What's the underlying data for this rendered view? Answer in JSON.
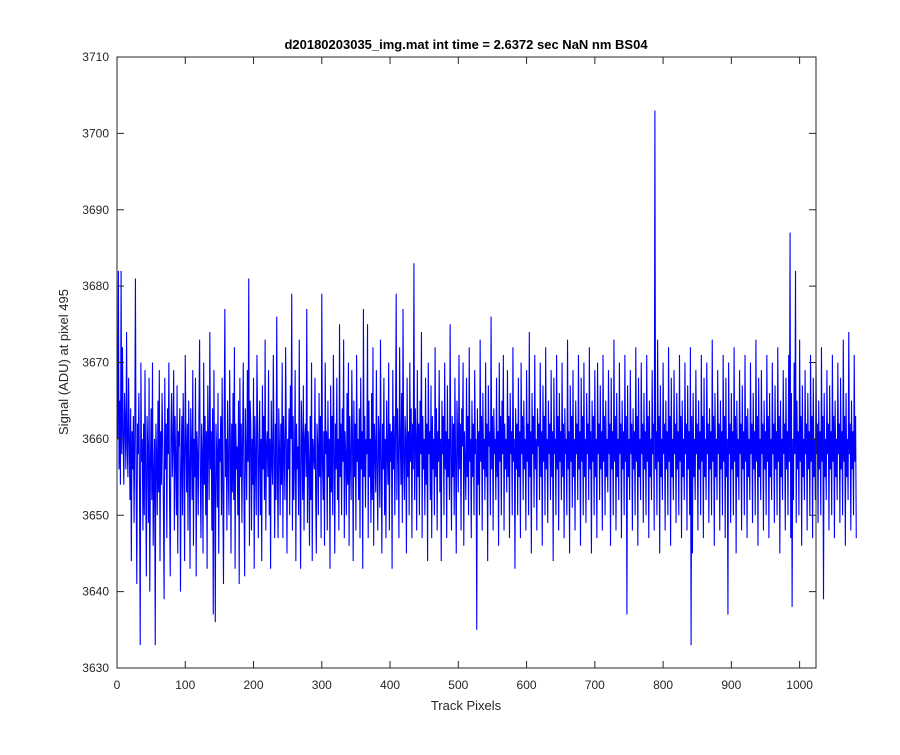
{
  "chart_data": {
    "type": "line",
    "title": "d20180203035_img.mat int time = 2.6372 sec  NaN nm BS04",
    "xlabel": "Track Pixels",
    "ylabel": "Signal (ADU) at pixel 495",
    "xlim": [
      0,
      1024
    ],
    "ylim": [
      3630,
      3710
    ],
    "xticks": [
      0,
      100,
      200,
      300,
      400,
      500,
      600,
      700,
      800,
      900,
      1000
    ],
    "yticks": [
      3630,
      3640,
      3650,
      3660,
      3670,
      3680,
      3690,
      3700,
      3710
    ],
    "grid": false,
    "legend": "none",
    "line_color": "#0000ff",
    "series": [
      {
        "x_start": 1,
        "x_step": 1,
        "note_sampling": "approximate noisy trace, one value per track pixel 1..1024",
        "values": [
          3660,
          3682,
          3656,
          3665,
          3654,
          3682,
          3658,
          3672,
          3660,
          3654,
          3666,
          3662,
          3656,
          3674,
          3659,
          3655,
          3668,
          3660,
          3652,
          3664,
          3644,
          3661,
          3656,
          3663,
          3649,
          3660,
          3681,
          3655,
          3641,
          3662,
          3658,
          3666,
          3653,
          3633,
          3670,
          3657,
          3660,
          3648,
          3662,
          3650,
          3669,
          3655,
          3642,
          3663,
          3659,
          3649,
          3668,
          3640,
          3657,
          3664,
          3652,
          3670,
          3646,
          3655,
          3660,
          3633,
          3662,
          3658,
          3650,
          3665,
          3653,
          3669,
          3644,
          3661,
          3654,
          3666,
          3660,
          3651,
          3639,
          3668,
          3656,
          3662,
          3647,
          3664,
          3658,
          3670,
          3652,
          3642,
          3661,
          3666,
          3655,
          3659,
          3669,
          3648,
          3663,
          3657,
          3650,
          3667,
          3645,
          3661,
          3659,
          3664,
          3640,
          3656,
          3663,
          3650,
          3666,
          3658,
          3644,
          3671,
          3660,
          3653,
          3662,
          3648,
          3665,
          3657,
          3643,
          3664,
          3659,
          3652,
          3669,
          3646,
          3660,
          3655,
          3668,
          3642,
          3661,
          3658,
          3650,
          3663,
          3673,
          3655,
          3647,
          3662,
          3658,
          3645,
          3670,
          3654,
          3663,
          3650,
          3661,
          3643,
          3667,
          3659,
          3652,
          3674,
          3656,
          3661,
          3648,
          3664,
          3637,
          3669,
          3655,
          3636,
          3662,
          3658,
          3651,
          3666,
          3645,
          3660,
          3657,
          3663,
          3650,
          3668,
          3653,
          3641,
          3662,
          3677,
          3655,
          3660,
          3648,
          3665,
          3656,
          3650,
          3669,
          3660,
          3645,
          3662,
          3653,
          3666,
          3652,
          3672,
          3643,
          3662,
          3656,
          3659,
          3650,
          3665,
          3641,
          3668,
          3655,
          3662,
          3649,
          3660,
          3670,
          3653,
          3642,
          3664,
          3658,
          3652,
          3669,
          3657,
          3681,
          3646,
          3665,
          3662,
          3648,
          3660,
          3654,
          3668,
          3643,
          3663,
          3657,
          3650,
          3671,
          3662,
          3647,
          3658,
          3665,
          3650,
          3660,
          3644,
          3667,
          3656,
          3663,
          3652,
          3673,
          3648,
          3659,
          3661,
          3655,
          3669,
          3650,
          3660,
          3643,
          3665,
          3657,
          3654,
          3671,
          3658,
          3647,
          3662,
          3652,
          3676,
          3655,
          3647,
          3664,
          3659,
          3650,
          3662,
          3654,
          3670,
          3647,
          3663,
          3658,
          3652,
          3672,
          3661,
          3645,
          3660,
          3656,
          3664,
          3650,
          3667,
          3660,
          3679,
          3648,
          3663,
          3652,
          3657,
          3669,
          3644,
          3662,
          3656,
          3659,
          3650,
          3673,
          3654,
          3643,
          3665,
          3660,
          3652,
          3667,
          3648,
          3660,
          3662,
          3655,
          3677,
          3649,
          3661,
          3657,
          3646,
          3663,
          3652,
          3670,
          3644,
          3660,
          3658,
          3656,
          3668,
          3653,
          3645,
          3662,
          3659,
          3650,
          3666,
          3655,
          3663,
          3647,
          3679,
          3657,
          3652,
          3661,
          3646,
          3670,
          3658,
          3661,
          3648,
          3665,
          3655,
          3660,
          3643,
          3667,
          3653,
          3663,
          3650,
          3671,
          3659,
          3645,
          3662,
          3656,
          3668,
          3652,
          3660,
          3648,
          3675,
          3655,
          3662,
          3650,
          3664,
          3657,
          3673,
          3647,
          3661,
          3658,
          3650,
          3666,
          3654,
          3670,
          3646,
          3663,
          3657,
          3652,
          3669,
          3660,
          3644,
          3665,
          3655,
          3662,
          3648,
          3671,
          3657,
          3660,
          3652,
          3664,
          3647,
          3668,
          3656,
          3661,
          3643,
          3677,
          3655,
          3663,
          3651,
          3660,
          3658,
          3675,
          3647,
          3665,
          3655,
          3660,
          3649,
          3666,
          3652,
          3672,
          3646,
          3662,
          3659,
          3653,
          3669,
          3656,
          3648,
          3663,
          3660,
          3651,
          3673,
          3657,
          3645,
          3662,
          3656,
          3668,
          3650,
          3660,
          3647,
          3665,
          3658,
          3654,
          3670,
          3648,
          3662,
          3657,
          3661,
          3643,
          3669,
          3656,
          3663,
          3650,
          3661,
          3679,
          3652,
          3664,
          3658,
          3647,
          3672,
          3660,
          3654,
          3666,
          3649,
          3677,
          3657,
          3652,
          3663,
          3660,
          3645,
          3668,
          3655,
          3661,
          3650,
          3670,
          3657,
          3664,
          3647,
          3662,
          3656,
          3683,
          3652,
          3664,
          3660,
          3648,
          3669,
          3655,
          3662,
          3650,
          3665,
          3658,
          3674,
          3647,
          3663,
          3656,
          3660,
          3650,
          3668,
          3654,
          3662,
          3644,
          3670,
          3658,
          3661,
          3652,
          3667,
          3647,
          3663,
          3656,
          3660,
          3650,
          3672,
          3655,
          3664,
          3648,
          3661,
          3657,
          3669,
          3653,
          3660,
          3644,
          3665,
          3658,
          3663,
          3650,
          3670,
          3656,
          3661,
          3647,
          3667,
          3655,
          3660,
          3652,
          3675,
          3658,
          3648,
          3663,
          3655,
          3662,
          3650,
          3668,
          3657,
          3645,
          3665,
          3660,
          3653,
          3671,
          3656,
          3662,
          3648,
          3664,
          3659,
          3670,
          3646,
          3661,
          3657,
          3652,
          3668,
          3655,
          3663,
          3650,
          3672,
          3657,
          3660,
          3647,
          3665,
          3655,
          3662,
          3650,
          3669,
          3658,
          3660,
          3635,
          3664,
          3654,
          3661,
          3650,
          3673,
          3657,
          3663,
          3648,
          3666,
          3656,
          3660,
          3652,
          3670,
          3655,
          3662,
          3644,
          3667,
          3659,
          3661,
          3650,
          3676,
          3656,
          3663,
          3648,
          3664,
          3658,
          3660,
          3652,
          3668,
          3655,
          3661,
          3646,
          3670,
          3657,
          3663,
          3650,
          3665,
          3658,
          3671,
          3648,
          3662,
          3656,
          3660,
          3653,
          3669,
          3655,
          3663,
          3647,
          3666,
          3658,
          3661,
          3650,
          3672,
          3657,
          3660,
          3643,
          3664,
          3656,
          3662,
          3650,
          3668,
          3655,
          3661,
          3647,
          3670,
          3658,
          3663,
          3652,
          3665,
          3656,
          3660,
          3648,
          3669,
          3657,
          3662,
          3650,
          3674,
          3655,
          3661,
          3645,
          3666,
          3658,
          3663,
          3651,
          3671,
          3656,
          3660,
          3648,
          3664,
          3659,
          3662,
          3652,
          3670,
          3655,
          3661,
          3646,
          3667,
          3657,
          3663,
          3650,
          3672,
          3656,
          3660,
          3649,
          3665,
          3658,
          3662,
          3652,
          3669,
          3655,
          3661,
          3644,
          3668,
          3658,
          3660,
          3650,
          3671,
          3656,
          3663,
          3648,
          3666,
          3657,
          3661,
          3652,
          3670,
          3655,
          3662,
          3647,
          3664,
          3658,
          3660,
          3650,
          3673,
          3656,
          3661,
          3645,
          3667,
          3657,
          3663,
          3651,
          3669,
          3655,
          3660,
          3648,
          3665,
          3658,
          3662,
          3652,
          3671,
          3656,
          3661,
          3646,
          3668,
          3657,
          3663,
          3650,
          3670,
          3655,
          3660,
          3649,
          3666,
          3658,
          3662,
          3652,
          3672,
          3656,
          3661,
          3645,
          3665,
          3657,
          3663,
          3650,
          3669,
          3655,
          3660,
          3647,
          3670,
          3658,
          3662,
          3652,
          3667,
          3656,
          3661,
          3648,
          3671,
          3657,
          3663,
          3650,
          3665,
          3655,
          3660,
          3653,
          3669,
          3658,
          3662,
          3646,
          3668,
          3656,
          3661,
          3650,
          3673,
          3657,
          3663,
          3648,
          3666,
          3655,
          3660,
          3652,
          3670,
          3658,
          3662,
          3647,
          3665,
          3656,
          3661,
          3650,
          3671,
          3657,
          3663,
          3637,
          3667,
          3655,
          3660,
          3652,
          3669,
          3658,
          3662,
          3648,
          3664,
          3656,
          3661,
          3650,
          3672,
          3657,
          3663,
          3646,
          3668,
          3655,
          3660,
          3652,
          3670,
          3658,
          3662,
          3649,
          3666,
          3656,
          3661,
          3650,
          3671,
          3657,
          3663,
          3647,
          3665,
          3655,
          3660,
          3652,
          3669,
          3658,
          3662,
          3648,
          3703,
          3656,
          3661,
          3650,
          3673,
          3657,
          3663,
          3645,
          3667,
          3655,
          3660,
          3652,
          3670,
          3658,
          3662,
          3648,
          3665,
          3656,
          3661,
          3650,
          3672,
          3657,
          3663,
          3646,
          3668,
          3655,
          3660,
          3652,
          3669,
          3658,
          3662,
          3649,
          3666,
          3656,
          3661,
          3650,
          3671,
          3657,
          3663,
          3647,
          3665,
          3655,
          3660,
          3652,
          3670,
          3658,
          3662,
          3648,
          3667,
          3656,
          3661,
          3650,
          3672,
          3633,
          3663,
          3645,
          3666,
          3655,
          3660,
          3652,
          3669,
          3658,
          3662,
          3648,
          3665,
          3656,
          3661,
          3650,
          3671,
          3657,
          3663,
          3647,
          3668,
          3655,
          3660,
          3652,
          3670,
          3658,
          3662,
          3649,
          3664,
          3656,
          3661,
          3650,
          3673,
          3657,
          3663,
          3646,
          3666,
          3655,
          3660,
          3652,
          3669,
          3658,
          3662,
          3648,
          3665,
          3656,
          3661,
          3650,
          3671,
          3657,
          3663,
          3647,
          3668,
          3655,
          3660,
          3637,
          3670,
          3658,
          3662,
          3649,
          3666,
          3656,
          3661,
          3650,
          3672,
          3657,
          3663,
          3645,
          3665,
          3655,
          3660,
          3652,
          3669,
          3658,
          3662,
          3648,
          3667,
          3656,
          3661,
          3650,
          3671,
          3657,
          3663,
          3647,
          3664,
          3655,
          3660,
          3652,
          3670,
          3658,
          3662,
          3649,
          3666,
          3656,
          3661,
          3650,
          3673,
          3657,
          3663,
          3646,
          3668,
          3655,
          3660,
          3652,
          3669,
          3658,
          3662,
          3648,
          3665,
          3656,
          3661,
          3650,
          3671,
          3657,
          3663,
          3647,
          3666,
          3655,
          3660,
          3652,
          3670,
          3658,
          3662,
          3649,
          3667,
          3656,
          3661,
          3650,
          3672,
          3657,
          3663,
          3645,
          3665,
          3655,
          3660,
          3652,
          3669,
          3658,
          3662,
          3648,
          3668,
          3656,
          3661,
          3650,
          3671,
          3657,
          3687,
          3647,
          3666,
          3638,
          3660,
          3652,
          3670,
          3658,
          3682,
          3649,
          3665,
          3656,
          3661,
          3650,
          3673,
          3657,
          3663,
          3646,
          3667,
          3655,
          3660,
          3652,
          3669,
          3658,
          3662,
          3648,
          3666,
          3656,
          3661,
          3650,
          3671,
          3657,
          3663,
          3647,
          3668,
          3655,
          3660,
          3652,
          3670,
          3658,
          3662,
          3649,
          3665,
          3656,
          3661,
          3650,
          3672,
          3657,
          3663,
          3639,
          3666,
          3655,
          3660,
          3652,
          3669,
          3658,
          3662,
          3648,
          3667,
          3656,
          3661,
          3650,
          3671,
          3657,
          3663,
          3647,
          3665,
          3655,
          3660,
          3652,
          3670,
          3658,
          3662,
          3649,
          3668,
          3656,
          3661,
          3650,
          3673,
          3657,
          3663,
          3646,
          3666,
          3655,
          3660,
          3652,
          3674,
          3658,
          3662,
          3648,
          3665,
          3656,
          3661,
          3650,
          3671,
          3657,
          3663,
          3647
        ]
      }
    ]
  }
}
